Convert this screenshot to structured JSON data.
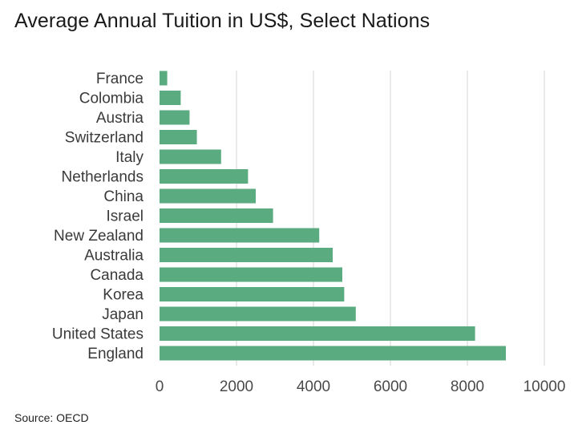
{
  "title": "Average Annual Tuition in US$, Select Nations",
  "source": "Source: OECD",
  "colors": {
    "bar": "#5aab7f",
    "grid": "#d4d4d4",
    "text": "#3a3a3a"
  },
  "chart_data": {
    "type": "bar",
    "orientation": "horizontal",
    "title": "Average Annual Tuition in US$, Select Nations",
    "xlabel": "",
    "ylabel": "",
    "xlim": [
      0,
      10000
    ],
    "xticks": [
      0,
      2000,
      4000,
      6000,
      8000,
      10000
    ],
    "grid": "vertical",
    "categories": [
      "France",
      "Colombia",
      "Austria",
      "Switzerland",
      "Italy",
      "Netherlands",
      "China",
      "Israel",
      "New Zealand",
      "Australia",
      "Canada",
      "Korea",
      "Japan",
      "United States",
      "England"
    ],
    "values": [
      200,
      550,
      780,
      970,
      1600,
      2300,
      2500,
      2950,
      4150,
      4500,
      4750,
      4800,
      5100,
      8200,
      9000
    ]
  }
}
